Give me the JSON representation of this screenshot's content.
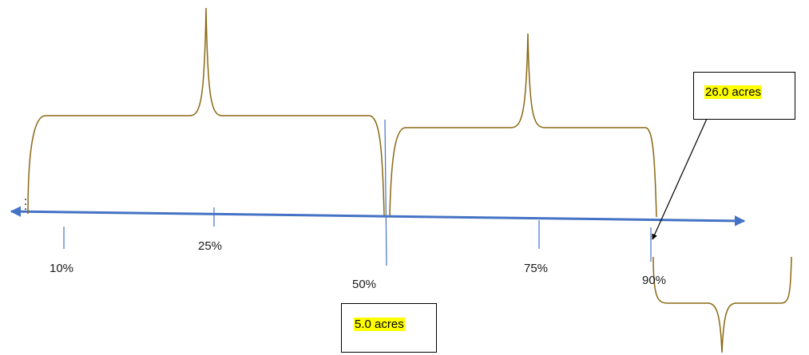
{
  "colors": {
    "axis": "#4472c4",
    "brace": "#8b6914",
    "highlight": "#ffff00",
    "pointer": "#000000"
  },
  "ticks": [
    {
      "label": "10%"
    },
    {
      "label": "25%"
    },
    {
      "label": "50%"
    },
    {
      "label": "75%"
    },
    {
      "label": "90%"
    }
  ],
  "callouts": {
    "median": {
      "text": "5.0 acres"
    },
    "p90": {
      "text": "26.0 acres"
    }
  },
  "braces": [
    "lower-half-brace",
    "upper-range-brace",
    "upper-tail-brace"
  ]
}
